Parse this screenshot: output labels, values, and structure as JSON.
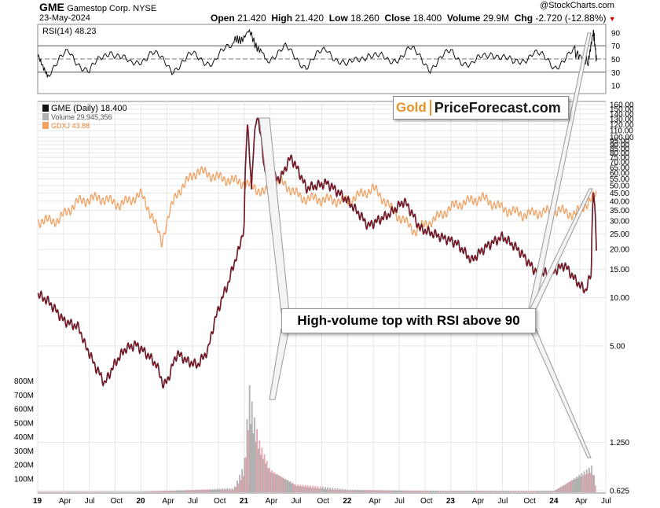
{
  "header": {
    "symbol": "GME",
    "company": "Gamestop Corp.",
    "exchange": "NYSE",
    "date": "23-May-2024",
    "open_label": "Open",
    "open": "21.420",
    "high_label": "High",
    "high": "21.420",
    "low_label": "Low",
    "low": "18.260",
    "close_label": "Close",
    "close": "18.400",
    "volume_label": "Volume",
    "volume": "29.9M",
    "chg_label": "Chg",
    "chg": "-2.720 (-12.88%)",
    "watermark": "@StockCharts.com"
  },
  "colors": {
    "gme": "#111111",
    "gme_down": "#d01030",
    "gdxj": "#f0a060",
    "volume": "#b0b0b0",
    "logo_gold": "#e89228"
  },
  "rsi_panel": {
    "legend": "RSI(14) 48.23",
    "ticks": [
      "90",
      "70",
      "50",
      "30",
      "10"
    ]
  },
  "main_panel": {
    "legend_gme": "GME (Daily) 18.400",
    "legend_volume": "Volume 29,945,356",
    "legend_gdxj": "GDXJ 43.88",
    "price_ticks": [
      "0.625",
      "1.250",
      "5.00",
      "10.00",
      "15.00",
      "20.00",
      "25.00",
      "30.00",
      "35.00",
      "40.00",
      "45.00",
      "50.00",
      "55.00",
      "60.00",
      "65.00",
      "70.00",
      "75.00",
      "80.00",
      "85.00",
      "90.00",
      "95.00",
      "100.00",
      "110.00",
      "120.00",
      "130.00",
      "140.00",
      "150.00",
      "160.00"
    ],
    "volume_ticks": [
      "100M",
      "200M",
      "300M",
      "400M",
      "500M",
      "600M",
      "700M",
      "800M"
    ],
    "x_labels": [
      "19",
      "Apr",
      "Jul",
      "Oct",
      "20",
      "Apr",
      "Jul",
      "Oct",
      "21",
      "Apr",
      "Jul",
      "Oct",
      "22",
      "Apr",
      "Jul",
      "Oct",
      "23",
      "Apr",
      "Jul",
      "Oct",
      "24",
      "Apr",
      "Jul"
    ]
  },
  "logo": {
    "gold": "Gold",
    "rest": "PriceForecast.com"
  },
  "annotation": {
    "text": "High-volume top with RSI above 90"
  },
  "chart_data": {
    "type": "line",
    "title": "GME Gamestop Corp. NYSE",
    "series": [
      {
        "name": "GME",
        "points": [
          [
            2019.0,
            10.5
          ],
          [
            2019.1,
            9.5
          ],
          [
            2019.25,
            7.2
          ],
          [
            2019.4,
            6.5
          ],
          [
            2019.45,
            5.2
          ],
          [
            2019.55,
            3.8
          ],
          [
            2019.65,
            2.9
          ],
          [
            2019.75,
            3.9
          ],
          [
            2019.85,
            4.8
          ],
          [
            2019.95,
            5.1
          ],
          [
            2020.05,
            4.5
          ],
          [
            2020.15,
            3.8
          ],
          [
            2020.22,
            2.8
          ],
          [
            2020.27,
            3.2
          ],
          [
            2020.35,
            4.5
          ],
          [
            2020.45,
            4.0
          ],
          [
            2020.55,
            3.8
          ],
          [
            2020.65,
            4.7
          ],
          [
            2020.75,
            8.5
          ],
          [
            2020.85,
            12.5
          ],
          [
            2020.95,
            20.0
          ],
          [
            2021.0,
            28.0
          ],
          [
            2021.03,
            120.0
          ],
          [
            2021.07,
            45.0
          ],
          [
            2021.12,
            140.0
          ],
          [
            2021.2,
            60.0
          ],
          [
            2021.35,
            55.0
          ],
          [
            2021.45,
            75.0
          ],
          [
            2021.6,
            48.0
          ],
          [
            2021.8,
            52.0
          ],
          [
            2022.0,
            40.0
          ],
          [
            2022.2,
            28.0
          ],
          [
            2022.4,
            33.0
          ],
          [
            2022.55,
            40.0
          ],
          [
            2022.7,
            27.0
          ],
          [
            2022.9,
            24.0
          ],
          [
            2023.05,
            22.0
          ],
          [
            2023.2,
            17.0
          ],
          [
            2023.35,
            21.0
          ],
          [
            2023.5,
            24.0
          ],
          [
            2023.65,
            20.0
          ],
          [
            2023.8,
            15.0
          ],
          [
            2023.95,
            14.0
          ],
          [
            2024.1,
            16.0
          ],
          [
            2024.2,
            13.0
          ],
          [
            2024.3,
            11.0
          ],
          [
            2024.36,
            14.0
          ],
          [
            2024.38,
            50.0
          ],
          [
            2024.41,
            18.4
          ]
        ]
      },
      {
        "name": "GDXJ",
        "points": [
          [
            2019.0,
            30.0
          ],
          [
            2019.2,
            30.5
          ],
          [
            2019.4,
            40.0
          ],
          [
            2019.6,
            42.0
          ],
          [
            2019.8,
            38.0
          ],
          [
            2020.0,
            44.0
          ],
          [
            2020.2,
            22.0
          ],
          [
            2020.35,
            45.0
          ],
          [
            2020.55,
            62.0
          ],
          [
            2020.75,
            56.0
          ],
          [
            2021.0,
            52.0
          ],
          [
            2021.2,
            45.0
          ],
          [
            2021.35,
            53.0
          ],
          [
            2021.55,
            42.0
          ],
          [
            2021.75,
            41.0
          ],
          [
            2022.0,
            40.0
          ],
          [
            2022.25,
            48.0
          ],
          [
            2022.45,
            34.0
          ],
          [
            2022.65,
            26.0
          ],
          [
            2022.85,
            31.0
          ],
          [
            2023.05,
            38.0
          ],
          [
            2023.3,
            42.0
          ],
          [
            2023.5,
            36.0
          ],
          [
            2023.7,
            33.0
          ],
          [
            2023.85,
            34.0
          ],
          [
            2024.05,
            35.0
          ],
          [
            2024.2,
            33.0
          ],
          [
            2024.3,
            38.0
          ],
          [
            2024.41,
            43.88
          ]
        ]
      },
      {
        "name": "Volume (M)",
        "points": [
          [
            2019.0,
            5
          ],
          [
            2020.0,
            5
          ],
          [
            2020.9,
            30
          ],
          [
            2021.0,
            200
          ],
          [
            2021.05,
            790
          ],
          [
            2021.1,
            550
          ],
          [
            2021.15,
            380
          ],
          [
            2021.25,
            180
          ],
          [
            2021.5,
            60
          ],
          [
            2022.0,
            20
          ],
          [
            2023.0,
            10
          ],
          [
            2024.0,
            10
          ],
          [
            2024.37,
            200
          ],
          [
            2024.41,
            30
          ]
        ]
      }
    ],
    "rsi": [
      [
        2019.0,
        55
      ],
      [
        2019.1,
        30
      ],
      [
        2019.3,
        60
      ],
      [
        2019.5,
        30
      ],
      [
        2019.7,
        65
      ],
      [
        2019.9,
        40
      ],
      [
        2020.1,
        60
      ],
      [
        2020.3,
        35
      ],
      [
        2020.5,
        55
      ],
      [
        2020.7,
        45
      ],
      [
        2020.9,
        75
      ],
      [
        2021.05,
        90
      ],
      [
        2021.2,
        50
      ],
      [
        2021.4,
        65
      ],
      [
        2021.6,
        40
      ],
      [
        2021.8,
        65
      ],
      [
        2022.0,
        38
      ],
      [
        2022.2,
        60
      ],
      [
        2022.4,
        45
      ],
      [
        2022.6,
        65
      ],
      [
        2022.8,
        38
      ],
      [
        2023.0,
        60
      ],
      [
        2023.2,
        40
      ],
      [
        2023.4,
        62
      ],
      [
        2023.6,
        42
      ],
      [
        2023.8,
        60
      ],
      [
        2024.0,
        40
      ],
      [
        2024.2,
        60
      ],
      [
        2024.33,
        45
      ],
      [
        2024.38,
        93
      ],
      [
        2024.41,
        48.23
      ]
    ],
    "rsi_ylim": [
      0,
      100
    ],
    "price_ylim": [
      0.625,
      160
    ],
    "volume_ylim": [
      0,
      800
    ],
    "xlim": [
      2019.0,
      2024.5
    ],
    "xlabel": "",
    "ylabel": ""
  }
}
